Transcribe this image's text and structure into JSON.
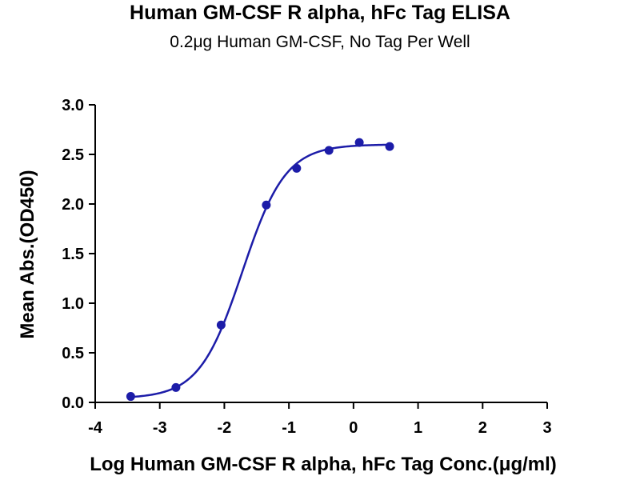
{
  "chart_data": {
    "type": "scatter",
    "title": "Human GM-CSF R alpha, hFc Tag ELISA",
    "subtitle": "0.2μg Human GM-CSF, No Tag Per Well",
    "xlabel": "Log Human GM-CSF R alpha, hFc Tag Conc.(μg/ml)",
    "ylabel": "Mean Abs.(OD450)",
    "xlim": [
      -4,
      3
    ],
    "ylim": [
      0,
      3
    ],
    "xticks": [
      "-4",
      "-3",
      "-2",
      "-1",
      "0",
      "1",
      "2",
      "3"
    ],
    "yticks": [
      "0.0",
      "0.5",
      "1.0",
      "1.5",
      "2.0",
      "2.5",
      "3.0"
    ],
    "grid": false,
    "series": [
      {
        "x": [
          -3.45,
          -2.75,
          -2.05,
          -1.35,
          -0.88,
          -0.38,
          0.09,
          0.56
        ],
        "y": [
          0.06,
          0.15,
          0.78,
          1.99,
          2.36,
          2.54,
          2.62,
          2.58
        ],
        "color": "#1c1ca8",
        "fit": "four-parameter logistic",
        "fit_params": {
          "bottom": 0.04,
          "top": 2.6,
          "log_ec50": -1.72,
          "hill": 1.3
        }
      }
    ]
  }
}
